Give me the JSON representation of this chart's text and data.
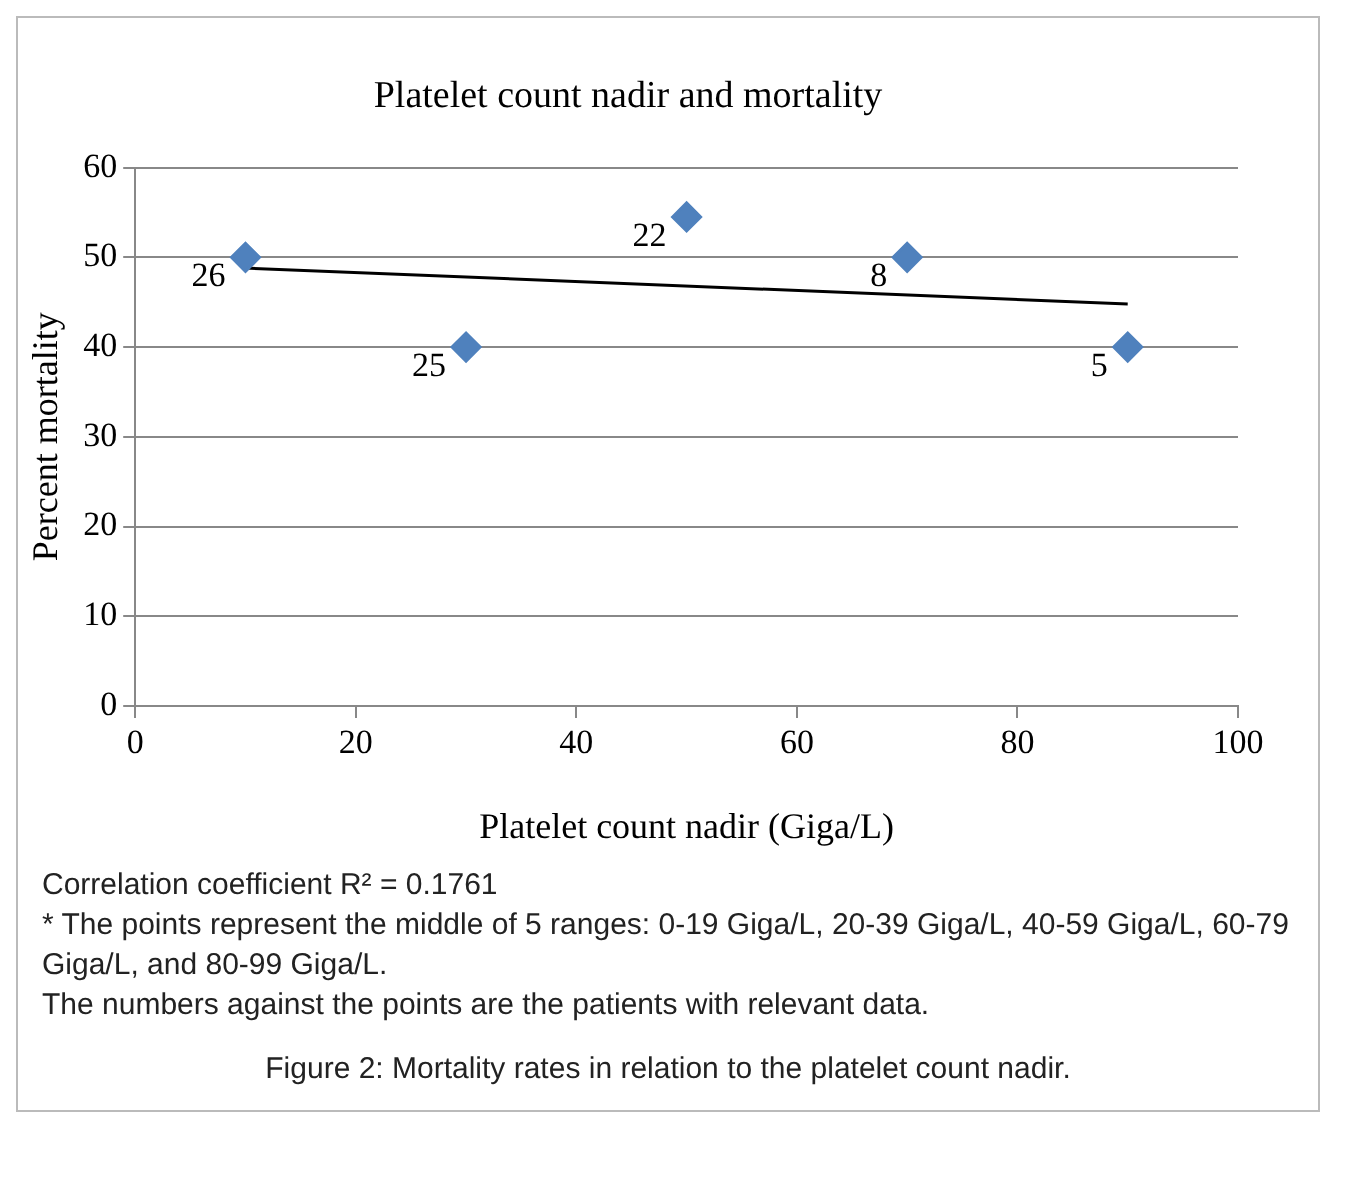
{
  "chart_data": {
    "type": "scatter",
    "title": "Platelet count nadir and mortality",
    "xlabel": "Platelet count nadir (Giga/L)",
    "ylabel": "Percent mortality",
    "x": [
      10,
      30,
      50,
      70,
      90
    ],
    "series": [
      {
        "color": "#4f81bd",
        "values": [
          50,
          40,
          54.5,
          50,
          40
        ],
        "marker": "diamond"
      },
      {
        "type": "line",
        "color": "#000000",
        "x": [
          10,
          90
        ],
        "values": [
          48.8,
          44.8
        ],
        "marker": "none"
      }
    ],
    "xlim": [
      0,
      100
    ],
    "xticks": [
      0,
      20,
      40,
      60,
      80,
      100
    ],
    "ylim": [
      0,
      60
    ],
    "yticks": [
      0,
      10,
      20,
      30,
      40,
      50,
      60
    ],
    "grid": "y",
    "legend": false,
    "annotations": [
      {
        "text": "26",
        "x": 10,
        "y": 50
      },
      {
        "text": "25",
        "x": 30,
        "y": 40
      },
      {
        "text": "22",
        "x": 50,
        "y": 54.5
      },
      {
        "text": "8",
        "x": 70,
        "y": 50
      },
      {
        "text": "5",
        "x": 90,
        "y": 40
      },
      "Correlation coefficient R² = 0.1761",
      "* The points represent the middle of 5 ranges: 0-19 Giga/L, 20-39 Giga/L, 40-59 Giga/L, 60-79 Giga/L, and 80-99 Giga/L.",
      "The numbers against the points are the patients with relevant data.",
      "Figure 2: Mortality rates in relation to the platelet count nadir."
    ]
  }
}
